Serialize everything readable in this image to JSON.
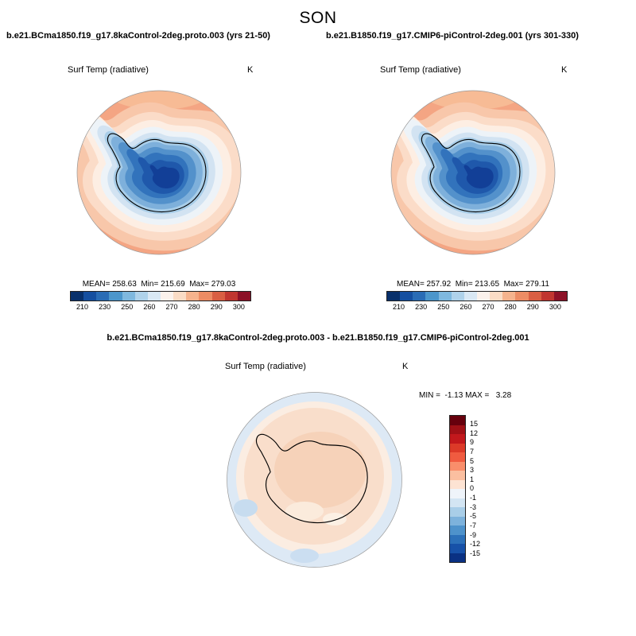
{
  "page_title": "SON",
  "header": {
    "left_subtitle": "b.e21.BCma1850.f19_g17.8kaControl-2deg.proto.003 (yrs 21-50)",
    "right_subtitle": "b.e21.B1850.f19_g17.CMIP6-piControl-2deg.001 (yrs 301-330)"
  },
  "panel_left": {
    "field_label": "Surf Temp (radiative)",
    "unit": "K",
    "stats": "MEAN= 258.63  Min= 215.69  Max= 279.03"
  },
  "panel_right": {
    "field_label": "Surf Temp (radiative)",
    "unit": "K",
    "stats": "MEAN= 257.92  Min= 213.65  Max= 279.11"
  },
  "panel_diff": {
    "title": "b.e21.BCma1850.f19_g17.8kaControl-2deg.proto.003 - b.e21.B1850.f19_g17.CMIP6-piControl-2deg.001",
    "field_label": "Surf Temp (radiative)",
    "unit": "K",
    "stats": "MIN =  -1.13 MAX =   3.28"
  },
  "colorbar_top": {
    "colors": [
      "#08306B",
      "#154FA0",
      "#2A6CB5",
      "#4C96CB",
      "#7FB8DE",
      "#AFD2EA",
      "#D9E8F4",
      "#FBF2EC",
      "#FADCC5",
      "#F5B38D",
      "#EC8C64",
      "#D95F43",
      "#C03630",
      "#8C1127"
    ],
    "ticks": [
      "210",
      "230",
      "250",
      "260",
      "270",
      "280",
      "290",
      "300"
    ]
  },
  "colorbar_diff": {
    "colors": [
      "#67000D",
      "#A01016",
      "#C2181C",
      "#DC3A28",
      "#F05B40",
      "#F98E6B",
      "#FBBFA0",
      "#FDE3D3",
      "#EFF4FA",
      "#D3E5F3",
      "#A9CEE8",
      "#7DB2DC",
      "#4E92CB",
      "#2C70B9",
      "#1751A8",
      "#0A3183"
    ],
    "ticks": [
      "15",
      "12",
      "9",
      "7",
      "5",
      "3",
      "1",
      "0",
      "-1",
      "-3",
      "-5",
      "-7",
      "-9",
      "-12",
      "-15"
    ]
  },
  "chart_data": [
    {
      "type": "heatmap",
      "subtype": "south-polar-stereographic-map",
      "title": "Surf Temp (radiative)",
      "units": "K",
      "case": "b.e21.BCma1850.f19_g17.8kaControl-2deg.proto.003 (yrs 21-50)",
      "season": "SON",
      "mean": 258.63,
      "min": 215.69,
      "max": 279.03,
      "levels": [
        210,
        230,
        250,
        260,
        270,
        280,
        290,
        300
      ],
      "palette": "blue-white-red diverging",
      "legend_position": "bottom",
      "description": "Cold (dark blue, ~215-250 K) over the Antarctic continent interior, grading through light blue sea-ice zone to warm salmon/orange (~280-300 K) over the surrounding Southern Ocean; black coastline contour"
    },
    {
      "type": "heatmap",
      "subtype": "south-polar-stereographic-map",
      "title": "Surf Temp (radiative)",
      "units": "K",
      "case": "b.e21.B1850.f19_g17.CMIP6-piControl-2deg.001 (yrs 301-330)",
      "season": "SON",
      "mean": 257.92,
      "min": 213.65,
      "max": 279.11,
      "levels": [
        210,
        230,
        250,
        260,
        270,
        280,
        290,
        300
      ],
      "palette": "blue-white-red diverging",
      "legend_position": "bottom",
      "description": "Nearly identical spatial pattern to the first case: dark blue cold continental interior, warm salmon ocean ring"
    },
    {
      "type": "heatmap",
      "subtype": "south-polar-stereographic-map",
      "title": "Surf Temp (radiative)",
      "units": "K",
      "case": "b.e21.BCma1850.f19_g17.8kaControl-2deg.proto.003 - b.e21.B1850.f19_g17.CMIP6-piControl-2deg.001",
      "season": "SON",
      "min": -1.13,
      "max": 3.28,
      "levels": [
        15,
        12,
        9,
        7,
        5,
        3,
        1,
        0,
        -1,
        -3,
        -5,
        -7,
        -9,
        -12,
        -15
      ],
      "palette": "red-white-blue diverging",
      "legend_position": "right",
      "description": "Difference map: weak warm anomaly (0 to +3 K, pale peach) over most of the continent and interior ocean, weak cool anomaly (0 to -1 K, pale blue) around the outer ocean ring"
    }
  ]
}
